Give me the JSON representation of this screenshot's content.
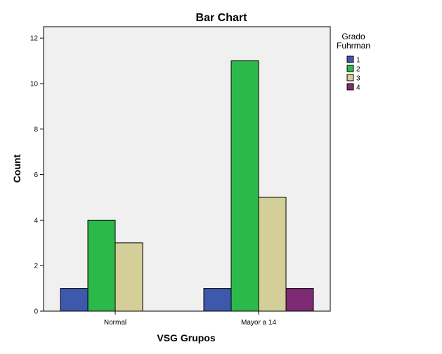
{
  "chart_data": {
    "type": "bar",
    "title": "Bar Chart",
    "xlabel": "VSG Grupos",
    "ylabel": "Count",
    "categories": [
      "Normal",
      "Mayor a 14"
    ],
    "legend_title_lines": [
      "Grado",
      "Fuhrman"
    ],
    "legend_position": "right",
    "ylim": [
      0,
      12.5
    ],
    "yticks": [
      0,
      2,
      4,
      6,
      8,
      10,
      12
    ],
    "grid": false,
    "series": [
      {
        "name": "1",
        "color": "#3e58ac",
        "values": [
          1,
          1
        ]
      },
      {
        "name": "2",
        "color": "#2db84a",
        "values": [
          4,
          11
        ]
      },
      {
        "name": "3",
        "color": "#d4cf98",
        "values": [
          3,
          5
        ]
      },
      {
        "name": "4",
        "color": "#7e2a74",
        "values": [
          0,
          1
        ]
      }
    ]
  }
}
